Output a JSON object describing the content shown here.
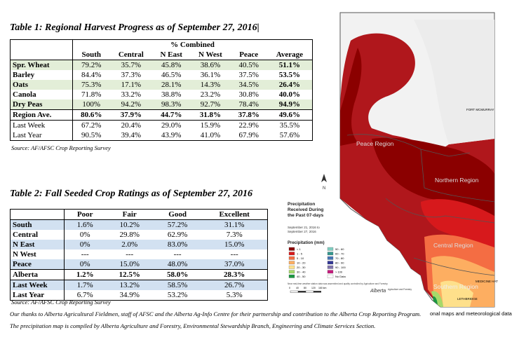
{
  "table1": {
    "title": "Table 1: Regional Harvest Progress as of September 27, 2016|",
    "group_header": "% Combined",
    "columns": [
      "South",
      "Central",
      "N East",
      "N West",
      "Peace",
      "Average"
    ],
    "rows": [
      {
        "label": "Spr. Wheat",
        "values": [
          "79.2%",
          "35.7%",
          "45.8%",
          "38.6%",
          "40.5%",
          "51.1%"
        ]
      },
      {
        "label": "Barley",
        "values": [
          "84.4%",
          "37.3%",
          "46.5%",
          "36.1%",
          "37.5%",
          "53.5%"
        ]
      },
      {
        "label": "Oats",
        "values": [
          "75.3%",
          "17.1%",
          "28.1%",
          "14.3%",
          "34.5%",
          "26.4%"
        ]
      },
      {
        "label": "Canola",
        "values": [
          "71.8%",
          "33.2%",
          "38.8%",
          "23.2%",
          "30.8%",
          "40.0%"
        ]
      },
      {
        "label": "Dry Peas",
        "values": [
          "100%",
          "94.2%",
          "98.3%",
          "92.7%",
          "78.4%",
          "94.9%"
        ]
      },
      {
        "label": "Region Ave.",
        "values": [
          "80.6%",
          "37.9%",
          "44.7%",
          "31.8%",
          "37.8%",
          "49.6%"
        ]
      },
      {
        "label": "Last Week",
        "values": [
          "67.2%",
          "20.4%",
          "29.0%",
          "15.9%",
          "22.9%",
          "35.5%"
        ]
      },
      {
        "label": "Last Year",
        "values": [
          "90.5%",
          "39.4%",
          "43.9%",
          "41.0%",
          "67.9%",
          "57.6%"
        ]
      }
    ],
    "source": "Source: AF/AFSC Crop Reporting Survey"
  },
  "table2": {
    "title": "Table 2: Fall Seeded Crop Ratings as of September 27, 2016",
    "columns": [
      "Poor",
      "Fair",
      "Good",
      "Excellent"
    ],
    "rows": [
      {
        "label": "South",
        "values": [
          "1.6%",
          "10.2%",
          "57.2%",
          "31.1%"
        ]
      },
      {
        "label": "Central",
        "values": [
          "0%",
          "29.8%",
          "62.9%",
          "7.3%"
        ]
      },
      {
        "label": "N East",
        "values": [
          "0%",
          "2.0%",
          "83.0%",
          "15.0%"
        ]
      },
      {
        "label": "N West",
        "values": [
          "---",
          "---",
          "---",
          "---"
        ]
      },
      {
        "label": "Peace",
        "values": [
          "0%",
          "15.0%",
          "48.0%",
          "37.0%"
        ]
      },
      {
        "label": "Alberta",
        "values": [
          "1.2%",
          "12.5%",
          "58.0%",
          "28.3%"
        ]
      },
      {
        "label": "Last Week",
        "values": [
          "1.7%",
          "13.2%",
          "58.5%",
          "26.7%"
        ]
      },
      {
        "label": "Last Year",
        "values": [
          "6.7%",
          "34.9%",
          "53.2%",
          "5.3%"
        ]
      }
    ],
    "source": "Source: AF/AFSC Crop Reporting Survey"
  },
  "map": {
    "regions": {
      "peace": "Peace Region",
      "northern": "Northern Region",
      "central": "Central Region",
      "southern": "Southern Region"
    },
    "cities": [
      "FORT MCMURRAY",
      "LETHBRIDGE",
      "MEDICINE HAT"
    ],
    "north_arrow": "N",
    "legend_title": "Precipitation Received During the Past 07-days",
    "legend_dates": "September 21, 2016 to September 27, 2016",
    "legend_heading": "Precipitation (mm)",
    "legend_left": [
      {
        "label": "< 1",
        "color": "#8b0000"
      },
      {
        "label": "1 - 5",
        "color": "#d7191c"
      },
      {
        "label": "5 - 10",
        "color": "#f46d43"
      },
      {
        "label": "10 - 20",
        "color": "#fdae61"
      },
      {
        "label": "20 - 30",
        "color": "#fee08b"
      },
      {
        "label": "30 - 40",
        "color": "#a6d96a"
      },
      {
        "label": "40 - 50",
        "color": "#1a9641"
      }
    ],
    "legend_right": [
      {
        "label": "50 - 60",
        "color": "#80cdc1"
      },
      {
        "label": "60 - 70",
        "color": "#35978f"
      },
      {
        "label": "70 - 80",
        "color": "#4575b4"
      },
      {
        "label": "80 - 90",
        "color": "#313695"
      },
      {
        "label": "90 - 100",
        "color": "#8073ac"
      },
      {
        "label": "> 100",
        "color": "#c51b7d"
      },
      {
        "label": "No Data",
        "color": "#ffffff"
      }
    ],
    "disclaimer": "Near real-time weather station data was assembled and quality controlled by Agriculture and Forestry.",
    "scale": [
      "0",
      "40",
      "80",
      "120",
      "160 km"
    ],
    "logo": "Alberta",
    "logo_sub": "Agriculture and Forestry"
  },
  "footer": {
    "line1": "Our thanks to Alberta Agricultural Fieldmen, staff of AFSC and the Alberta Ag-Info Centre for their partnership and contribution to the Alberta Crop Reporting Program.",
    "line1_overflow": "onal maps and meteorological data",
    "line2": "The precipitation map is compiled by Alberta Agriculture and Forestry, Environmental Stewardship Branch, Engineering and Climate Services Section."
  },
  "colors": {
    "table1_shade": "#e3eed8",
    "table2_shade": "#d2e1f1"
  }
}
